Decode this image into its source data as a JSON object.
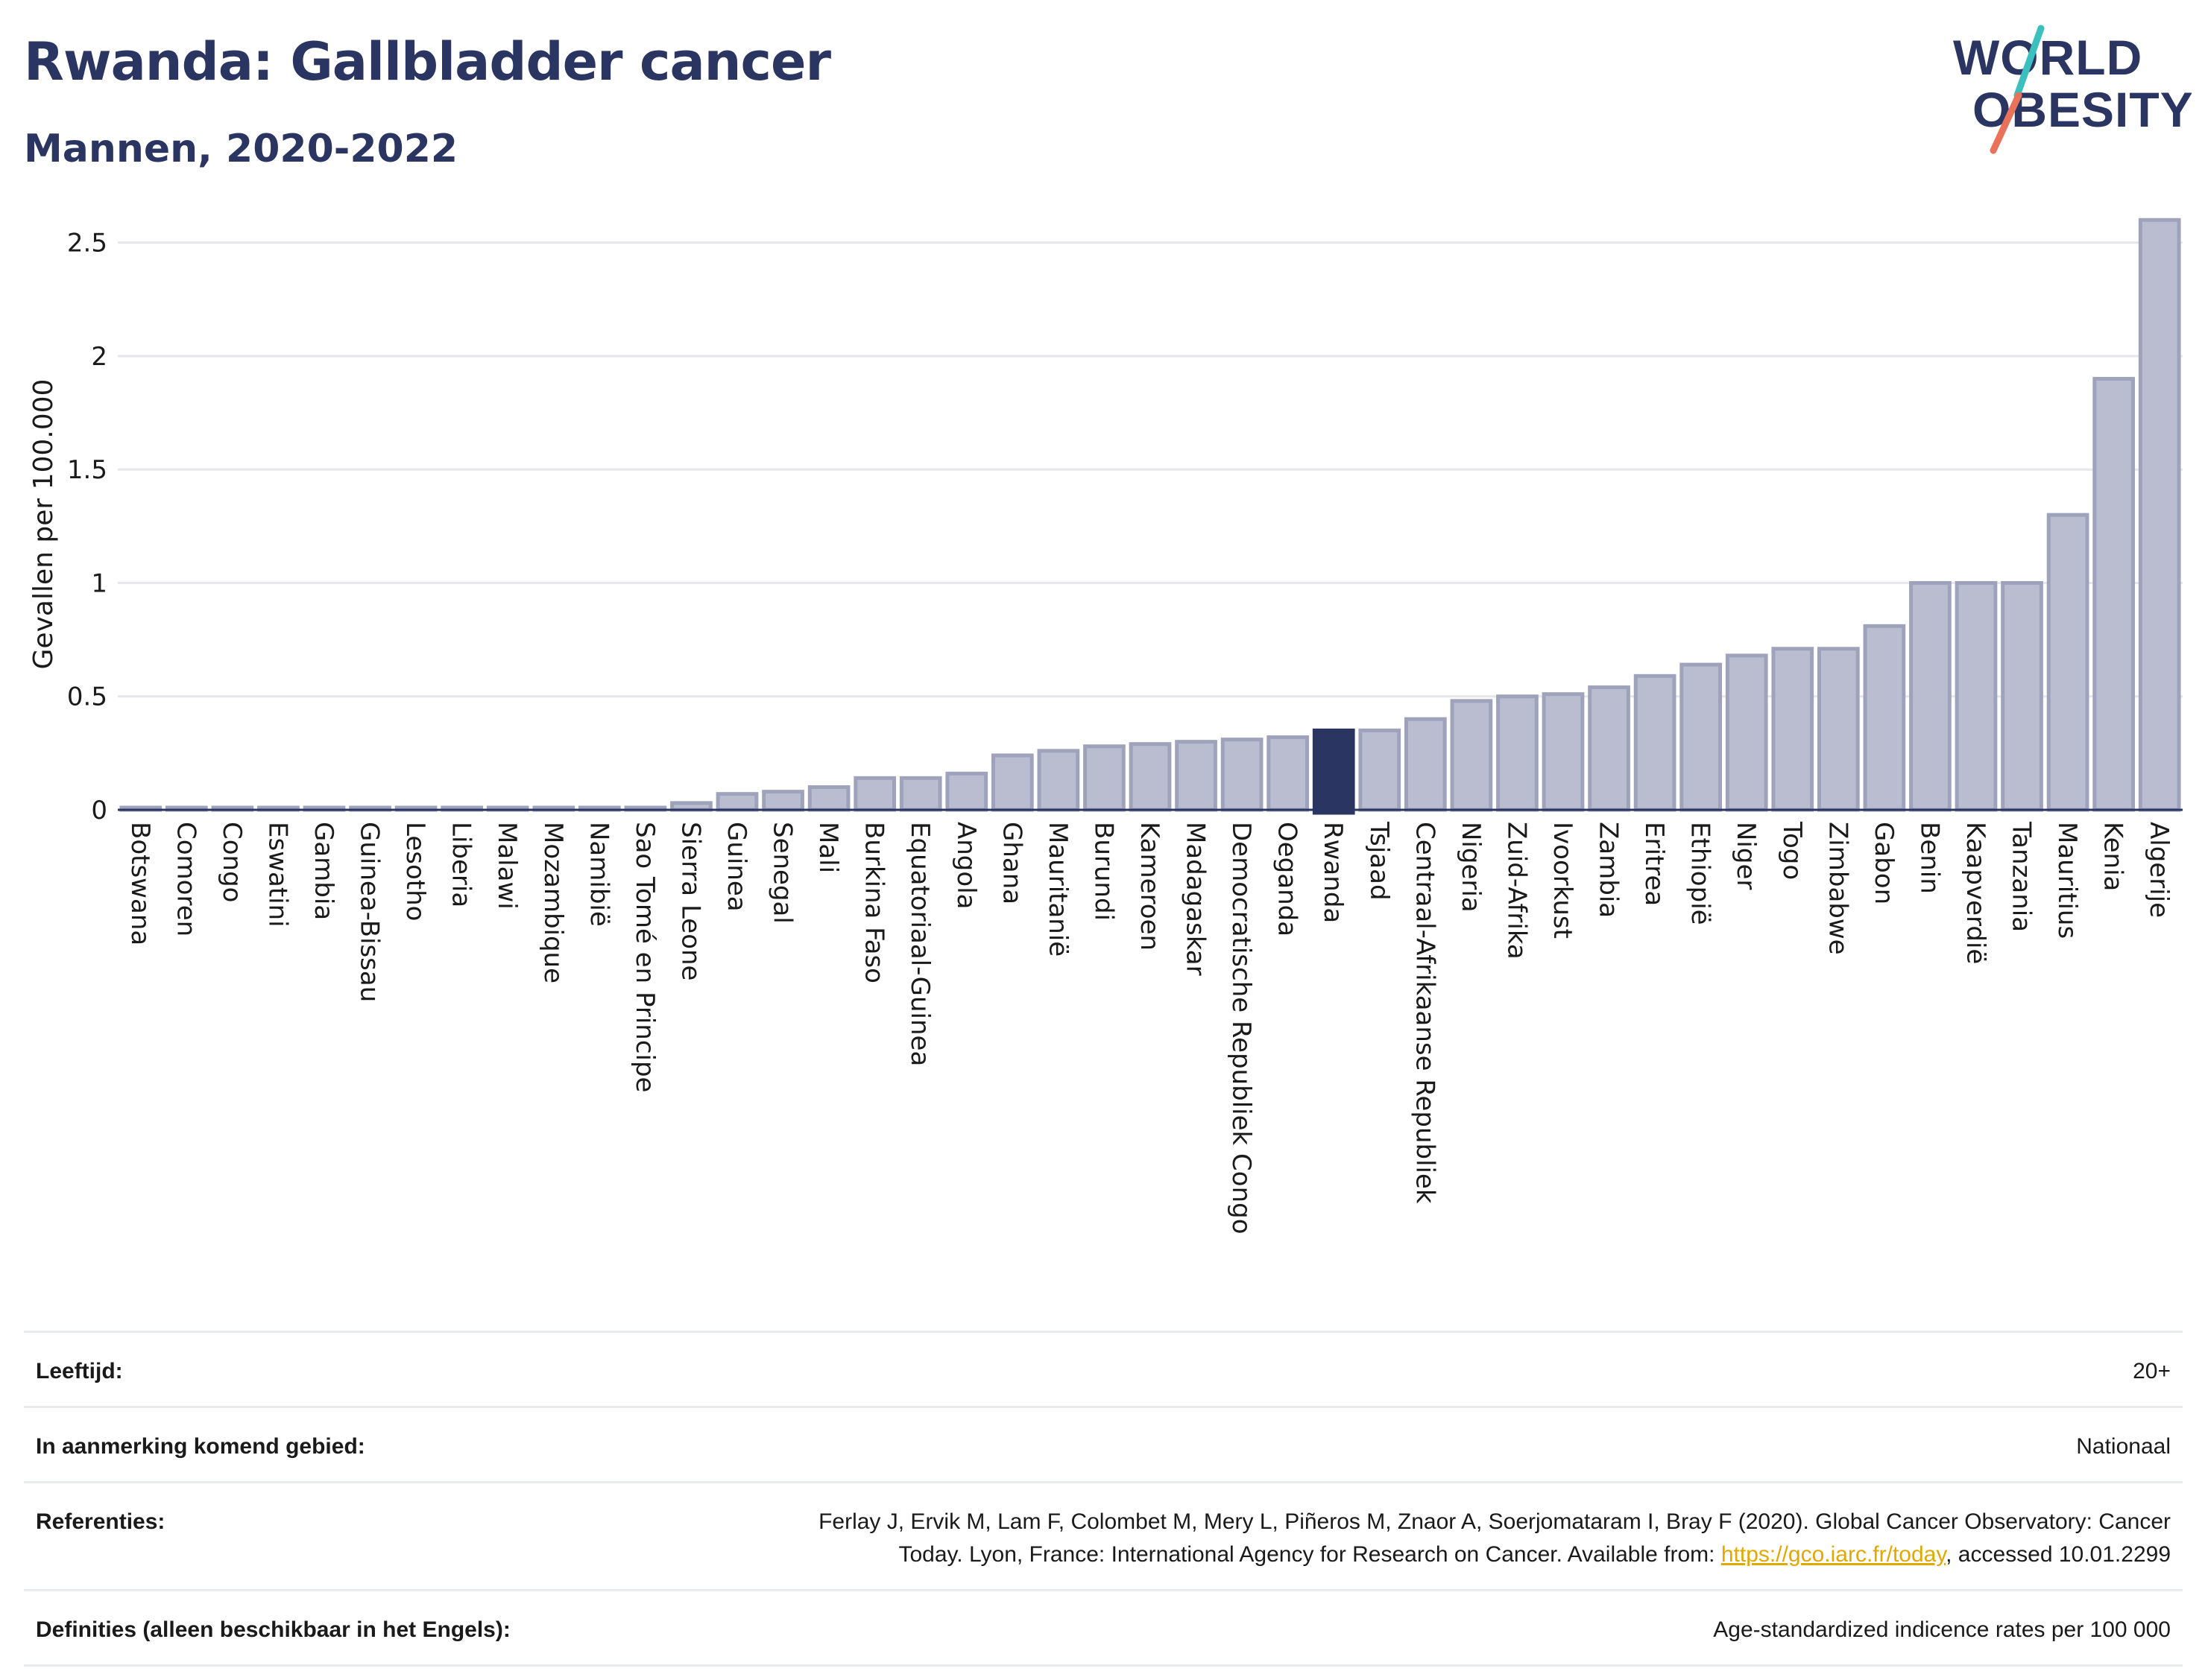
{
  "header": {
    "title": "Rwanda: Gallbladder cancer",
    "subtitle": "Mannen, 2020-2022"
  },
  "logo": {
    "line1": "WORLD",
    "line2": "OBESITY"
  },
  "colors": {
    "bar": "#b9bdcf",
    "bar_stroke": "#9ea3bb",
    "highlight": "#2b3561",
    "text_dark": "#2b3561",
    "grid": "#e6e6ec",
    "logo_teal": "#3bbfbf",
    "logo_coral": "#e8735a",
    "link": "#e0a800"
  },
  "chart_data": {
    "type": "bar",
    "title": "Rwanda: Gallbladder cancer",
    "subtitle": "Mannen, 2020-2022",
    "xlabel": "",
    "ylabel": "Gevallen per 100.000",
    "ylim": [
      0,
      2.65
    ],
    "yticks": [
      0,
      0.5,
      1,
      1.5,
      2,
      2.5
    ],
    "ytick_labels": [
      "0",
      "0.5",
      "1",
      "1.5",
      "2",
      "2.5"
    ],
    "grid": true,
    "highlight": "Rwanda",
    "categories": [
      "Botswana",
      "Comoren",
      "Congo",
      "Eswatini",
      "Gambia",
      "Guinea-Bissau",
      "Lesotho",
      "Liberia",
      "Malawi",
      "Mozambique",
      "Namibië",
      "Sao Tomé en Principe",
      "Sierra Leone",
      "Guinea",
      "Senegal",
      "Mali",
      "Burkina Faso",
      "Equatoriaal-Guinea",
      "Angola",
      "Ghana",
      "Mauritanië",
      "Burundi",
      "Kameroen",
      "Madagaskar",
      "Democratische Republiek Congo",
      "Oeganda",
      "Rwanda",
      "Tsjaad",
      "Centraal-Afrikaanse Republiek",
      "Nigeria",
      "Zuid-Afrika",
      "Ivoorkust",
      "Zambia",
      "Eritrea",
      "Ethiopië",
      "Niger",
      "Togo",
      "Zimbabwe",
      "Gabon",
      "Benin",
      "Kaapverdië",
      "Tanzania",
      "Mauritius",
      "Kenia",
      "Algerije"
    ],
    "values": [
      0,
      0,
      0,
      0,
      0,
      0,
      0,
      0,
      0,
      0,
      0,
      0,
      0.03,
      0.07,
      0.08,
      0.1,
      0.14,
      0.14,
      0.16,
      0.24,
      0.26,
      0.28,
      0.29,
      0.3,
      0.31,
      0.32,
      0.35,
      0.35,
      0.4,
      0.48,
      0.5,
      0.51,
      0.54,
      0.59,
      0.64,
      0.68,
      0.71,
      0.71,
      0.81,
      1.0,
      1.0,
      1.0,
      1.3,
      1.9,
      2.6
    ]
  },
  "info": {
    "rows": [
      {
        "label": "Leeftijd:",
        "value": "20+"
      },
      {
        "label": "In aanmerking komend gebied:",
        "value": "Nationaal"
      }
    ],
    "references": {
      "label": "Referenties:",
      "line1": "Ferlay J, Ervik M, Lam F, Colombet M, Mery L, Piñeros M, Znaor A, Soerjomataram I, Bray F (2020). Global Cancer Observatory: Cancer",
      "line2_before": "Today. Lyon, France: International Agency for Research on Cancer. Available from: ",
      "link": "https://gco.iarc.fr/today",
      "line2_after": ", accessed 10.01.2299"
    },
    "definitions": {
      "label": "Definities (alleen beschikbaar in het Engels):",
      "value": "Age-standardized indicence rates per 100 000"
    }
  }
}
